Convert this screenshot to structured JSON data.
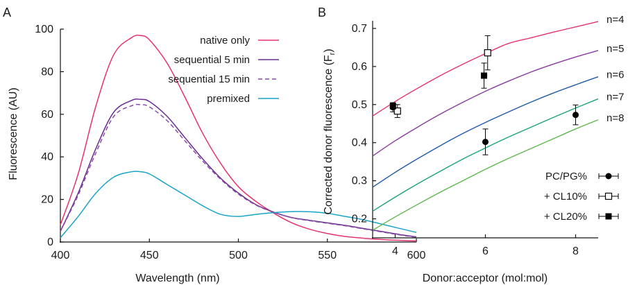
{
  "chart_data": [
    {
      "panel_label": "A",
      "type": "line",
      "xlabel": "Wavelength (nm)",
      "ylabel": "Fluorescence (AU)",
      "xlim": [
        400,
        600
      ],
      "ylim": [
        0,
        100
      ],
      "xticks": [
        400,
        450,
        500,
        550,
        600
      ],
      "yticks": [
        0,
        20,
        40,
        60,
        80,
        100
      ],
      "grid": false,
      "legend_position": "top-right",
      "x": [
        400,
        410,
        420,
        430,
        440,
        445,
        450,
        460,
        470,
        480,
        490,
        500,
        510,
        520,
        530,
        540,
        550,
        560,
        570,
        580,
        590,
        600
      ],
      "series": [
        {
          "name": "native only",
          "color": "#e8316e",
          "dash": false,
          "values": [
            8,
            32,
            64,
            88,
            96,
            97,
            95,
            84,
            68,
            51,
            37,
            26,
            19,
            13.5,
            9,
            6,
            4,
            2.6,
            1.8,
            1.2,
            0.8,
            0.5
          ]
        },
        {
          "name": "sequential 5 min",
          "color": "#6a2c91",
          "dash": false,
          "values": [
            5,
            23,
            44,
            61,
            66.5,
            67,
            66,
            59,
            49,
            39,
            30,
            23,
            17.5,
            14,
            11.5,
            10.2,
            9,
            7.8,
            6.4,
            5,
            3.6,
            2.4
          ]
        },
        {
          "name": "sequential 15 min",
          "color": "#8a4aa8",
          "dash": true,
          "values": [
            5,
            22,
            42,
            59,
            64,
            64.5,
            63.5,
            57,
            47.5,
            38,
            29.5,
            22.5,
            17.3,
            13.9,
            11.4,
            10,
            8.8,
            7.6,
            6.2,
            4.8,
            3.4,
            2.2
          ]
        },
        {
          "name": "premixed",
          "color": "#1aa3c9",
          "dash": false,
          "values": [
            2,
            12,
            23,
            30.5,
            33,
            33,
            32,
            27,
            22,
            17,
            13,
            12,
            13,
            13.8,
            14.3,
            14.2,
            13.5,
            12,
            10.5,
            8.5,
            6.5,
            4.5
          ]
        }
      ]
    },
    {
      "panel_label": "B",
      "type": "scatter",
      "xlabel": "Donor:acceptor (mol:mol)",
      "ylabel_main": "Corrected donor fluorescence (F",
      "ylabel_sub": "r",
      "ylabel_close": ")",
      "xlim": [
        3.5,
        8.5
      ],
      "ylim": [
        0.15,
        0.72
      ],
      "xticks": [
        4,
        6,
        8
      ],
      "yticks": [
        0.2,
        0.3,
        0.4,
        0.5,
        0.6,
        0.7
      ],
      "ytick_labels": [
        "0.2",
        "0.3",
        "0.4",
        "0.5",
        "0.6",
        "0.7"
      ],
      "grid": false,
      "legend_position": "bottom-right",
      "curves": [
        {
          "label": "n=4",
          "color": "#e8316e",
          "x": [
            3.5,
            4,
            4.5,
            5,
            5.5,
            6,
            6.5,
            7,
            7.5,
            8,
            8.5
          ],
          "values": [
            0.47,
            0.508,
            0.543,
            0.576,
            0.606,
            0.634,
            0.66,
            0.675,
            0.69,
            0.704,
            0.718
          ]
        },
        {
          "label": "n=5",
          "color": "#8a3aa0",
          "x": [
            3.5,
            4,
            4.5,
            5,
            5.5,
            6,
            6.5,
            7,
            7.5,
            8,
            8.5
          ],
          "values": [
            0.365,
            0.405,
            0.441,
            0.475,
            0.506,
            0.535,
            0.561,
            0.585,
            0.606,
            0.625,
            0.642
          ]
        },
        {
          "label": "n=6",
          "color": "#1f5aa6",
          "x": [
            3.5,
            4,
            4.5,
            5,
            5.5,
            6,
            6.5,
            7,
            7.5,
            8,
            8.5
          ],
          "values": [
            0.283,
            0.322,
            0.358,
            0.392,
            0.424,
            0.453,
            0.48,
            0.506,
            0.53,
            0.552,
            0.573
          ]
        },
        {
          "label": "n=7",
          "color": "#1aa37a",
          "x": [
            3.5,
            4,
            4.5,
            5,
            5.5,
            6,
            6.5,
            7,
            7.5,
            8,
            8.5
          ],
          "values": [
            0.22,
            0.257,
            0.292,
            0.325,
            0.357,
            0.386,
            0.414,
            0.44,
            0.466,
            0.491,
            0.515
          ]
        },
        {
          "label": "n=8",
          "color": "#5cb84a",
          "x": [
            3.5,
            4,
            4.5,
            5,
            5.5,
            6,
            6.5,
            7,
            7.5,
            8,
            8.5
          ],
          "values": [
            0.17,
            0.205,
            0.238,
            0.27,
            0.3,
            0.33,
            0.358,
            0.384,
            0.41,
            0.436,
            0.46
          ]
        }
      ],
      "series": [
        {
          "name": "PC/PG%",
          "marker": "filled-circle",
          "points": [
            {
              "x": 3.95,
              "y": 0.493,
              "err": 0.012
            },
            {
              "x": 6,
              "y": 0.402,
              "err": 0.034
            },
            {
              "x": 8,
              "y": 0.473,
              "err": 0.026
            }
          ]
        },
        {
          "name": "+ CL10%",
          "marker": "open-square",
          "points": [
            {
              "x": 4.05,
              "y": 0.483,
              "err": 0.017
            },
            {
              "x": 6.05,
              "y": 0.636,
              "err": 0.045
            }
          ]
        },
        {
          "name": "+ CL20%",
          "marker": "filled-square",
          "points": [
            {
              "x": 3.95,
              "y": 0.496,
              "err": 0.008
            },
            {
              "x": 5.97,
              "y": 0.576,
              "err": 0.033
            }
          ]
        }
      ]
    }
  ]
}
